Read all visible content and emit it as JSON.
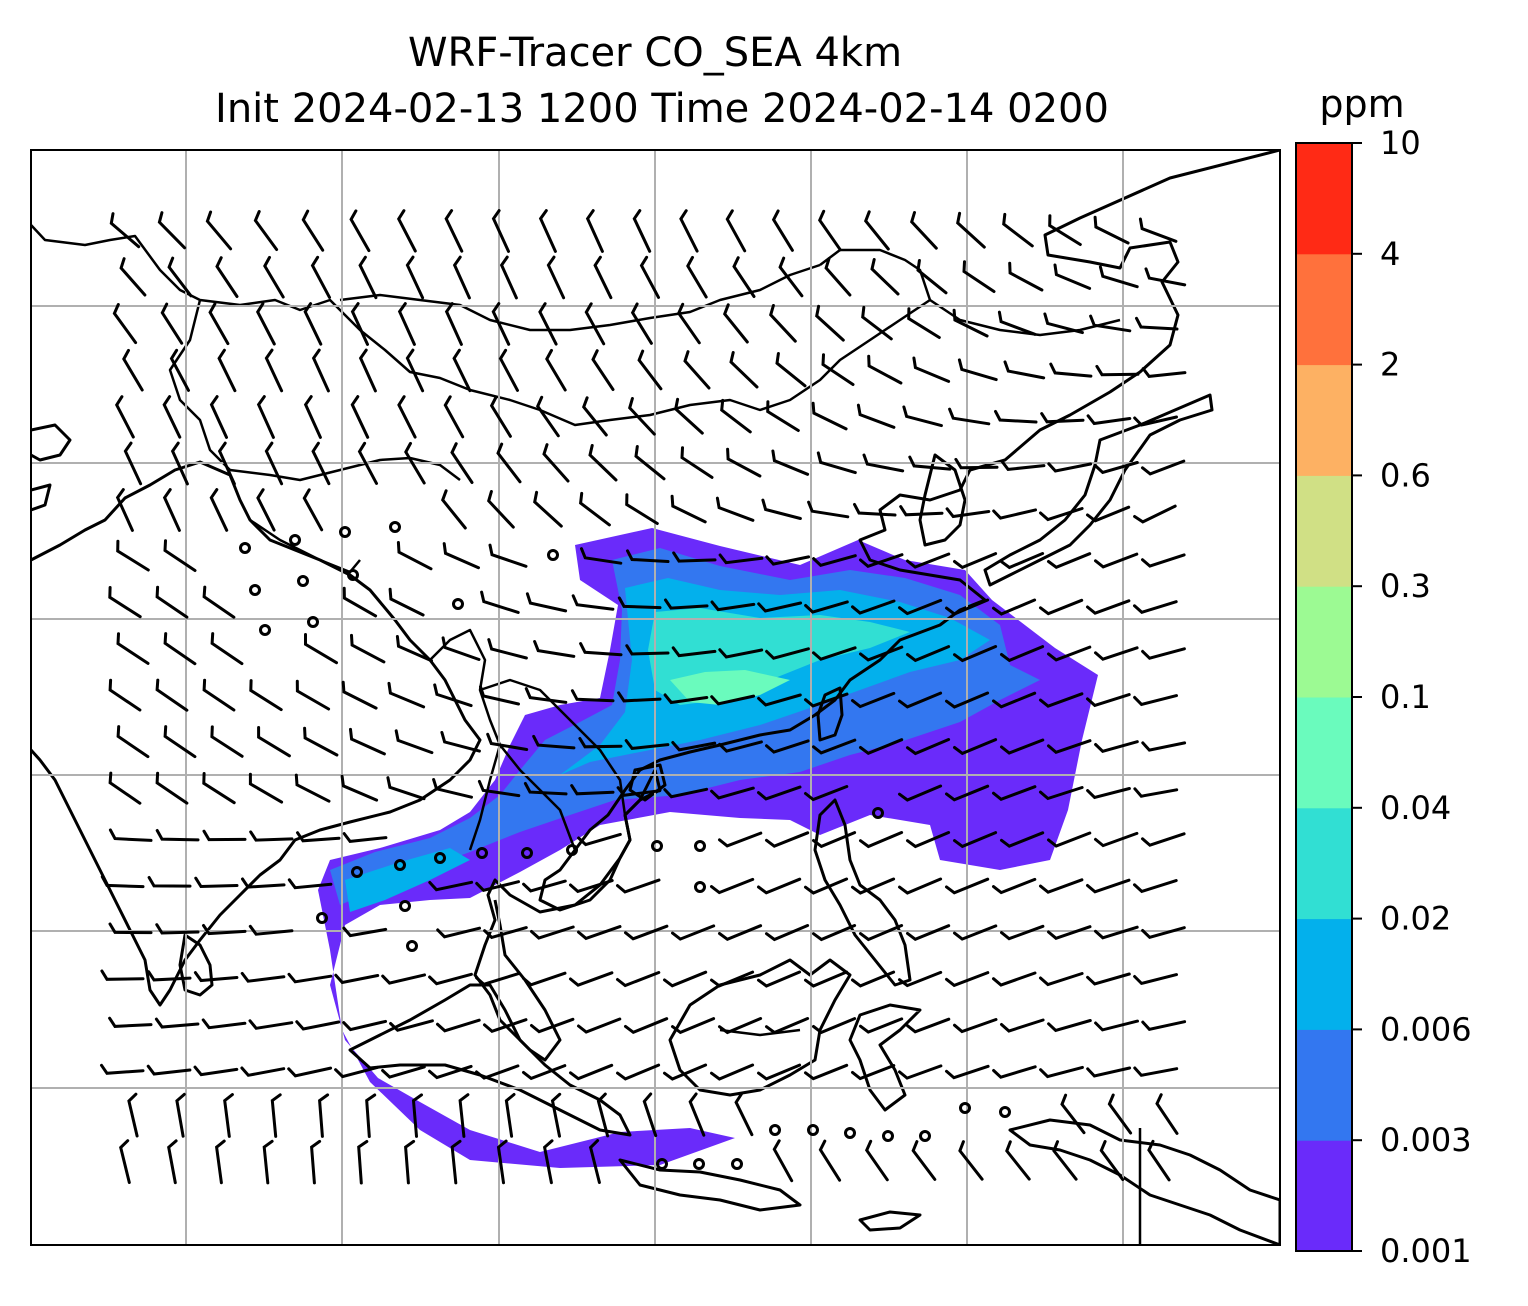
{
  "title": {
    "line1": "WRF-Tracer CO_SEA 4km",
    "line2": "Init 2024-02-13 1200 Time 2024-02-14 0200"
  },
  "colorbar": {
    "unit": "ppm",
    "levels": [
      "0.001",
      "0.003",
      "0.006",
      "0.02",
      "0.04",
      "0.1",
      "0.3",
      "0.6",
      "2",
      "4",
      "10"
    ],
    "colors": [
      "#6a2bfa",
      "#3377f0",
      "#03b0ec",
      "#31dfd3",
      "#6afbbd",
      "#9cfa93",
      "#d0e085",
      "#fdb163",
      "#ff713c",
      "#ff2a15"
    ]
  },
  "map": {
    "variable": "CO tracer concentration",
    "overlay": "wind barbs",
    "gridlines": true,
    "coastlines": true,
    "country_borders": true
  }
}
